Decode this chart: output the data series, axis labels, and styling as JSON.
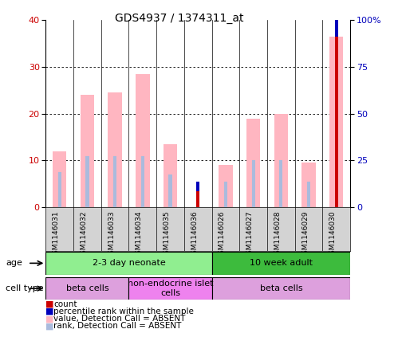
{
  "title": "GDS4937 / 1374311_at",
  "samples": [
    "GSM1146031",
    "GSM1146032",
    "GSM1146033",
    "GSM1146034",
    "GSM1146035",
    "GSM1146036",
    "GSM1146026",
    "GSM1146027",
    "GSM1146028",
    "GSM1146029",
    "GSM1146030"
  ],
  "value_absent": [
    12,
    24,
    24.5,
    28.5,
    13.5,
    0,
    9,
    19,
    20,
    9.5,
    36.5
  ],
  "rank_absent_pct": [
    18.75,
    27.5,
    27.5,
    27.5,
    17.5,
    0,
    13.75,
    25,
    25,
    13.75,
    38.75
  ],
  "count": [
    0,
    0,
    0,
    0,
    0,
    3.5,
    0,
    0,
    0,
    0,
    36.5
  ],
  "percentile_rank_pct": [
    0,
    0,
    0,
    0,
    0,
    5.0,
    0,
    0,
    0,
    0,
    40.0
  ],
  "ylim_left": [
    0,
    40
  ],
  "ylim_right": [
    0,
    100
  ],
  "yticks_left": [
    0,
    10,
    20,
    30,
    40
  ],
  "yticks_right": [
    0,
    25,
    50,
    75,
    100
  ],
  "yticklabels_right": [
    "0",
    "25",
    "50",
    "75",
    "100%"
  ],
  "age_groups": [
    {
      "label": "2-3 day neonate",
      "start": 0,
      "end": 6,
      "color": "#90ee90"
    },
    {
      "label": "10 week adult",
      "start": 6,
      "end": 11,
      "color": "#3dbb3d"
    }
  ],
  "cell_type_groups": [
    {
      "label": "beta cells",
      "start": 0,
      "end": 3,
      "color": "#dda0dd"
    },
    {
      "label": "non-endocrine islet\ncells",
      "start": 3,
      "end": 6,
      "color": "#ee82ee"
    },
    {
      "label": "beta cells",
      "start": 6,
      "end": 11,
      "color": "#dda0dd"
    }
  ],
  "bar_width": 0.5,
  "rank_bar_width": 0.12,
  "color_value_absent": "#ffb6c1",
  "color_rank_absent": "#aabbdd",
  "color_count": "#cc0000",
  "color_percentile": "#0000bb",
  "left_axis_color": "#cc0000",
  "right_axis_color": "#0000bb",
  "background_color": "#ffffff",
  "plot_bg": "#ffffff",
  "sample_label_bg": "#d3d3d3",
  "legend_items": [
    {
      "color": "#cc0000",
      "label": "count"
    },
    {
      "color": "#0000bb",
      "label": "percentile rank within the sample"
    },
    {
      "color": "#ffb6c1",
      "label": "value, Detection Call = ABSENT"
    },
    {
      "color": "#aabbdd",
      "label": "rank, Detection Call = ABSENT"
    }
  ]
}
